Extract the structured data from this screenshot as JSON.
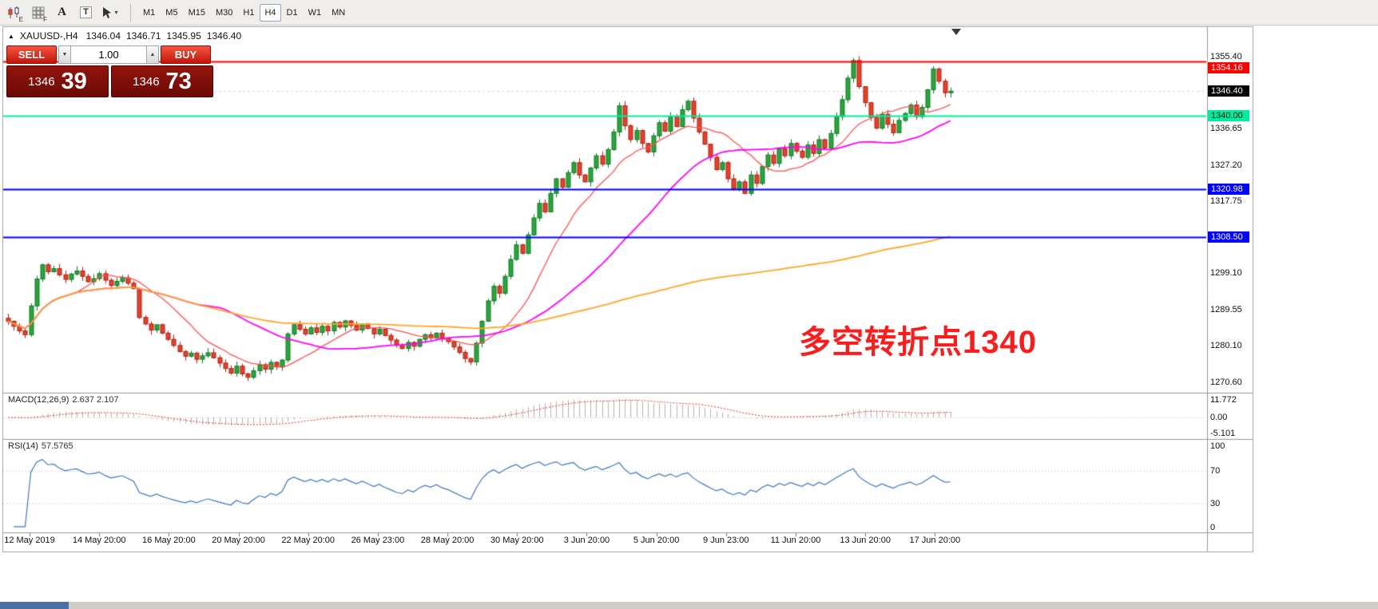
{
  "toolbar": {
    "icons": [
      {
        "name": "candlestick-style-icon",
        "badge": "E"
      },
      {
        "name": "grid-style-icon",
        "badge": "F"
      },
      {
        "name": "text-label-icon"
      },
      {
        "name": "text-box-icon"
      },
      {
        "name": "crosshair-tool-icon",
        "dropdown": true
      }
    ],
    "timeframes": [
      "M1",
      "M5",
      "M15",
      "M30",
      "H1",
      "H4",
      "D1",
      "W1",
      "MN"
    ],
    "active_timeframe": "H4"
  },
  "chart": {
    "symbol_label": "XAUUSD-,H4",
    "ohlc": {
      "open": "1346.04",
      "high": "1346.71",
      "low": "1345.95",
      "close": "1346.40"
    }
  },
  "trade_panel": {
    "sell_label": "SELL",
    "buy_label": "BUY",
    "volume": "1.00",
    "bid_small": "1346",
    "bid_big": "39",
    "ask_small": "1346",
    "ask_big": "73"
  },
  "annotation": {
    "text": "多空转折点1340",
    "color": "#fb1d1d"
  },
  "price_axis": {
    "items": [
      {
        "value": "1355.40"
      },
      {
        "value": "1354.16",
        "bg": "#ff0000",
        "fg": "#ffffff"
      },
      {
        "value": "1346.40",
        "bg": "#000000",
        "fg": "#ffffff"
      },
      {
        "value": "1340.00",
        "bg": "#00ed9c",
        "fg": "#00170d"
      },
      {
        "value": "1336.65"
      },
      {
        "value": "1327.20"
      },
      {
        "value": "1320.98",
        "bg": "#0000ff",
        "fg": "#ffffff"
      },
      {
        "value": "1317.75"
      },
      {
        "value": "1308.50",
        "bg": "#0000ff",
        "fg": "#ffffff"
      },
      {
        "value": "1299.10"
      },
      {
        "value": "1289.55"
      },
      {
        "value": "1280.10"
      },
      {
        "value": "1270.60"
      }
    ]
  },
  "macd_panel": {
    "label": "MACD(12,26,9)",
    "values": "2.637 2.107",
    "axis": [
      "11.772",
      "0.00",
      "-5.101"
    ]
  },
  "rsi_panel": {
    "label": "RSI(14)",
    "value": "57.5765",
    "axis": [
      "100",
      "70",
      "30",
      "0"
    ],
    "levels": [
      70,
      30
    ]
  },
  "time_axis": [
    "12 May 2019",
    "14 May 20:00",
    "16 May 20:00",
    "20 May 20:00",
    "22 May 20:00",
    "26 May 23:00",
    "28 May 20:00",
    "30 May 20:00",
    "3 Jun 20:00",
    "5 Jun 20:00",
    "9 Jun 23:00",
    "11 Jun 20:00",
    "13 Jun 20:00",
    "17 Jun 20:00"
  ],
  "chart_data": {
    "type": "candlestick",
    "symbol": "XAUUSD-",
    "timeframe": "H4",
    "last_close": 1346.4,
    "price_axis_range": [
      1270.6,
      1355.4
    ],
    "closes": [
      1286.5,
      1285.2,
      1284.0,
      1283.0,
      1290.5,
      1297.5,
      1301.2,
      1299.4,
      1300.2,
      1298.6,
      1297.4,
      1298.8,
      1299.6,
      1298.2,
      1296.8,
      1297.6,
      1298.9,
      1297.2,
      1295.8,
      1296.9,
      1297.8,
      1296.4,
      1295.0,
      1287.5,
      1285.8,
      1284.2,
      1285.6,
      1283.4,
      1281.8,
      1280.2,
      1278.6,
      1277.4,
      1278.2,
      1276.6,
      1277.5,
      1278.3,
      1277.0,
      1275.6,
      1274.2,
      1273.0,
      1274.8,
      1272.8,
      1271.9,
      1273.6,
      1275.2,
      1274.0,
      1275.8,
      1274.6,
      1276.4,
      1283.2,
      1285.6,
      1284.4,
      1283.2,
      1284.8,
      1283.6,
      1285.2,
      1284.0,
      1286.2,
      1285.0,
      1286.6,
      1285.4,
      1284.2,
      1285.8,
      1284.6,
      1283.2,
      1284.4,
      1282.8,
      1281.6,
      1280.2,
      1279.4,
      1281.0,
      1280.0,
      1281.8,
      1283.0,
      1282.2,
      1283.4,
      1282.0,
      1281.2,
      1279.8,
      1278.4,
      1276.8,
      1275.9,
      1280.8,
      1286.5,
      1291.8,
      1295.6,
      1293.8,
      1298.2,
      1302.6,
      1306.4,
      1304.2,
      1309.0,
      1313.4,
      1317.2,
      1315.0,
      1319.8,
      1323.6,
      1321.4,
      1325.2,
      1327.8,
      1324.6,
      1322.8,
      1326.4,
      1329.6,
      1327.4,
      1331.2,
      1335.8,
      1342.6,
      1337.4,
      1333.8,
      1336.2,
      1332.8,
      1330.6,
      1334.8,
      1338.2,
      1336.0,
      1339.8,
      1337.2,
      1341.6,
      1343.8,
      1339.4,
      1335.8,
      1332.6,
      1329.2,
      1326.0,
      1327.8,
      1323.6,
      1321.0,
      1322.8,
      1319.8,
      1324.6,
      1322.4,
      1326.8,
      1329.8,
      1327.6,
      1331.4,
      1329.6,
      1332.8,
      1330.8,
      1329.2,
      1332.4,
      1330.2,
      1333.8,
      1331.6,
      1335.4,
      1339.8,
      1344.2,
      1349.8,
      1354.4,
      1347.6,
      1343.4,
      1339.6,
      1336.8,
      1340.4,
      1337.8,
      1335.6,
      1338.8,
      1340.6,
      1342.8,
      1339.8,
      1342.2,
      1346.8,
      1352.2,
      1349.0,
      1346.0,
      1346.4
    ],
    "levels": [
      {
        "value": 1354.16,
        "color": "#ff0000",
        "label": "1354.16"
      },
      {
        "value": 1340.0,
        "color": "#00ed9c",
        "label": "1340.00"
      },
      {
        "value": 1320.98,
        "color": "#0000ff",
        "label": "1320.98"
      },
      {
        "value": 1308.5,
        "color": "#0000ff",
        "label": "1308.50"
      }
    ],
    "moving_averages": [
      {
        "name": "fast-ma",
        "period": 13,
        "color": "#ff5050"
      },
      {
        "name": "medium-ma",
        "period": 34,
        "color": "#ff00ff"
      },
      {
        "name": "slow-ma",
        "period": 150,
        "color": "#ffa627"
      }
    ],
    "indicators": {
      "macd": [
        12,
        26,
        9
      ],
      "rsi": 14
    },
    "colors": {
      "up": "#2aa63c",
      "up_border": "#0e7a24",
      "down": "#e8402a",
      "down_border": "#ac2112",
      "macd_histogram": "#b4b4b4",
      "macd_signal": "#e03030",
      "rsi_line": "#3f76c0"
    }
  }
}
